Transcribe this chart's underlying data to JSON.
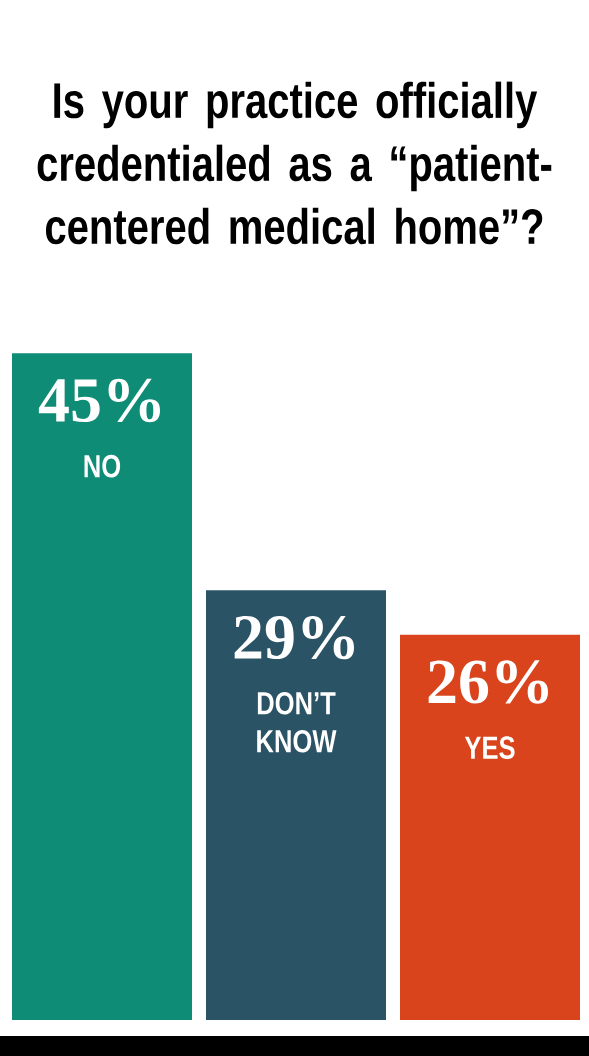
{
  "chart_data": {
    "type": "bar",
    "title": "Is your practice officially credentialed as a “patient-centered medical home”?",
    "categories": [
      "NO",
      "DON’T KNOW",
      "YES"
    ],
    "values": [
      45,
      29,
      26
    ],
    "value_labels": [
      "45%",
      "29%",
      "26%"
    ],
    "colors": [
      "#0e8c76",
      "#2b5366",
      "#d9441c"
    ]
  }
}
